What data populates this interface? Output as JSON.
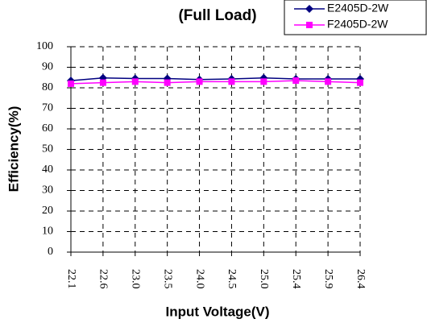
{
  "chart_data": {
    "type": "line",
    "title": "(Full Load)",
    "x_label": "Input Voltage(V)",
    "y_label": "Efficiency(%)",
    "categories": [
      "22.1",
      "22.6",
      "23.0",
      "23.5",
      "24.0",
      "24.5",
      "25.0",
      "25.4",
      "25.9",
      "26.4"
    ],
    "series": [
      {
        "name": "E2405D-2W",
        "color": "#000080",
        "marker": "diamond",
        "values": [
          83.5,
          84.8,
          84.5,
          84.5,
          84,
          84.3,
          84.8,
          84.3,
          84.3,
          84.3
        ]
      },
      {
        "name": "F2405D-2W",
        "color": "#ff00ff",
        "marker": "square",
        "values": [
          82,
          82.5,
          83,
          82.5,
          83,
          83,
          83,
          83.5,
          83,
          82.5
        ]
      }
    ],
    "ylim": [
      0,
      100
    ],
    "yticks": [
      0,
      10,
      20,
      30,
      40,
      50,
      60,
      70,
      80,
      90,
      100
    ],
    "grid": true,
    "legend": "top-right"
  }
}
